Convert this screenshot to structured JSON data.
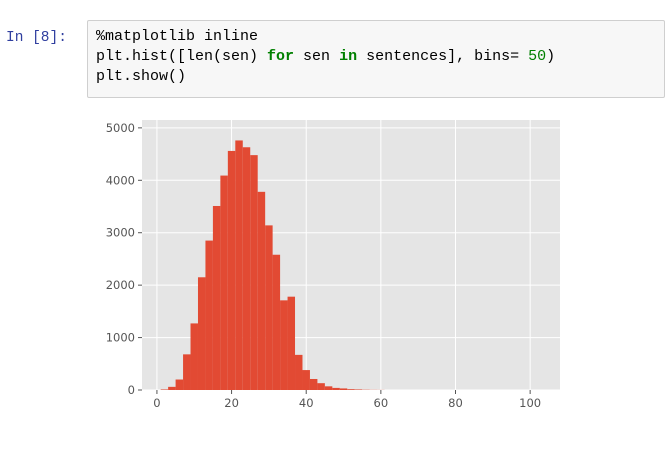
{
  "cell": {
    "prompt": "In [8]:",
    "code_lines": [
      [
        {
          "t": "%matplotlib inline",
          "c": ""
        }
      ],
      [
        {
          "t": "plt.hist([len(sen) ",
          "c": ""
        },
        {
          "t": "for",
          "c": "kw"
        },
        {
          "t": " sen ",
          "c": ""
        },
        {
          "t": "in",
          "c": "kw"
        },
        {
          "t": " sentences], bins= ",
          "c": ""
        },
        {
          "t": "50",
          "c": "num"
        },
        {
          "t": ")",
          "c": ""
        }
      ],
      [
        {
          "t": "plt.show()",
          "c": ""
        }
      ]
    ]
  },
  "chart_data": {
    "type": "bar",
    "style": "ggplot histogram",
    "bar_color": "#e24a33",
    "background_color": "#e5e5e5",
    "grid": true,
    "xlim": [
      -4,
      108
    ],
    "ylim": [
      0,
      5150
    ],
    "xticks": [
      0,
      20,
      40,
      60,
      80,
      100
    ],
    "yticks": [
      0,
      1000,
      2000,
      3000,
      4000,
      5000
    ],
    "bin_width": 2,
    "bin_start": 1,
    "values": [
      10,
      60,
      200,
      680,
      1270,
      2150,
      2850,
      3510,
      4090,
      4560,
      4760,
      4630,
      4480,
      3780,
      3140,
      2580,
      1710,
      1780,
      670,
      380,
      210,
      130,
      70,
      40,
      30,
      15,
      10,
      5,
      3,
      2
    ],
    "title": "",
    "xlabel": "",
    "ylabel": ""
  }
}
